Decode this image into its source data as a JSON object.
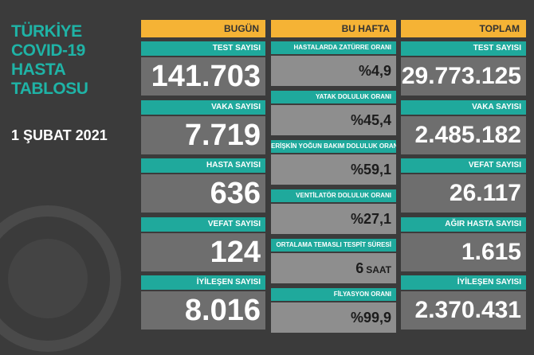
{
  "title_lines": [
    "TÜRKİYE",
    "COVID-19",
    "HASTA",
    "TABLOSU"
  ],
  "date": "1 ŞUBAT 2021",
  "columns": [
    {
      "header": "BUGÜN",
      "cards": [
        {
          "label": "TEST SAYISI",
          "value": "141.703"
        },
        {
          "label": "VAKA SAYISI",
          "value": "7.719"
        },
        {
          "label": "HASTA SAYISI",
          "value": "636"
        },
        {
          "label": "VEFAT SAYISI",
          "value": "124"
        },
        {
          "label": "İYİLEŞEN SAYISI",
          "value": "8.016"
        }
      ]
    },
    {
      "header": "BU HAFTA",
      "cards": [
        {
          "label": "HASTALARDA ZATÜRRE ORANI",
          "value": "%4,9"
        },
        {
          "label": "YATAK DOLULUK ORANI",
          "value": "%45,4"
        },
        {
          "label": "ERİŞKİN YOĞUN BAKIM DOLULUK ORANI",
          "value": "%59,1"
        },
        {
          "label": "VENTİLATÖR DOLULUK ORANI",
          "value": "%27,1"
        },
        {
          "label": "ORTALAMA TEMASLI TESPİT SÜRESİ",
          "value": "6",
          "unit": "SAAT"
        },
        {
          "label": "FİLYASYON ORANI",
          "value": "%99,9"
        }
      ]
    },
    {
      "header": "TOPLAM",
      "cards": [
        {
          "label": "TEST SAYISI",
          "value": "29.773.125"
        },
        {
          "label": "VAKA SAYISI",
          "value": "2.485.182"
        },
        {
          "label": "VEFAT SAYISI",
          "value": "26.117"
        },
        {
          "label": "AĞIR HASTA SAYISI",
          "value": "1.615"
        },
        {
          "label": "İYİLEŞEN SAYISI",
          "value": "2.370.431"
        }
      ]
    }
  ]
}
